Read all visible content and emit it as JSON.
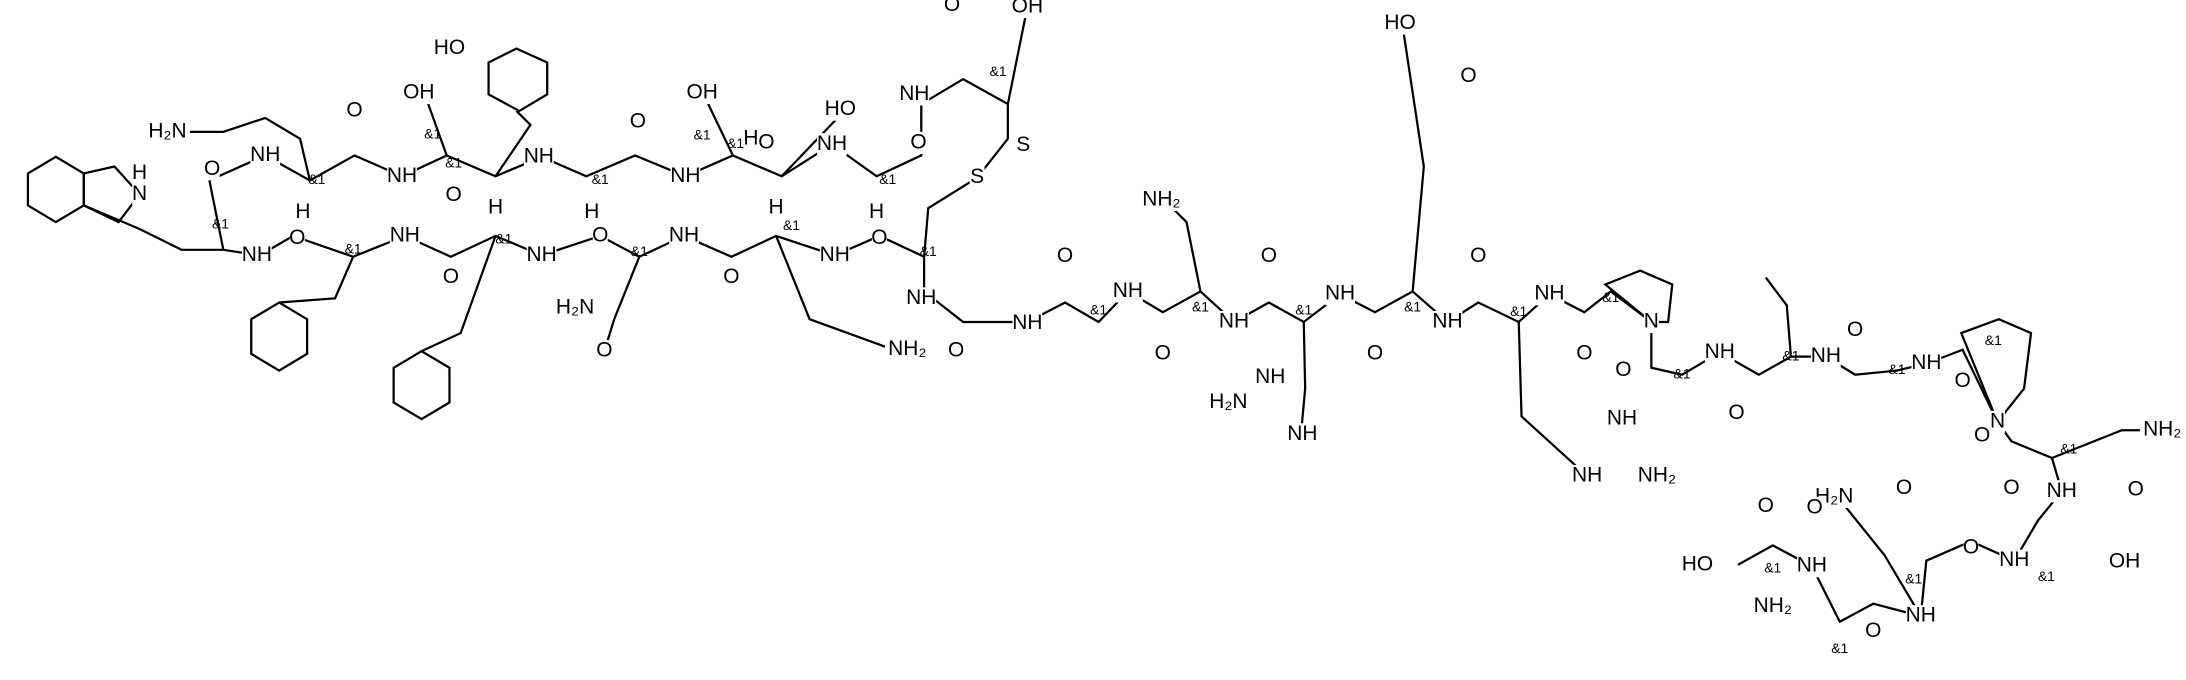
{
  "labels": [
    "H₂N",
    "NH",
    "&1",
    "O",
    "OH",
    "&1",
    "NH",
    "&1",
    "O",
    "HO",
    "NH",
    "&1",
    "O",
    "OH",
    "&1",
    "&1",
    "NH",
    "O",
    "HO",
    "NH",
    "&1",
    "O",
    "NH",
    "&1",
    "O",
    "OH",
    "S",
    "S",
    "H",
    "H",
    "H",
    "H",
    "N",
    "H",
    "&1",
    "O",
    "NH",
    "O",
    "&1",
    "NH",
    "O",
    "&1",
    "H",
    "NH",
    "O",
    "&1",
    "NH",
    "O",
    "&1",
    "H",
    "NH",
    "O",
    "&1",
    "NH",
    "H₂N",
    "O",
    "NH₂",
    "O",
    "NH",
    "O",
    "&1",
    "NH",
    "O",
    "&1",
    "NH₂",
    "NH",
    "O",
    "&1",
    "NH",
    "O",
    "&1",
    "HO",
    "O",
    "NH",
    "O",
    "&1",
    "NH",
    "O",
    "&1",
    "N",
    "O",
    "&1",
    "NH",
    "O",
    "&1",
    "NH",
    "O",
    "&1",
    "NH",
    "O",
    "&1",
    "N",
    "O",
    "&1",
    "NH",
    "O",
    "O",
    "NH₂",
    "NH",
    "H₂N",
    "NH",
    "NH",
    "NH₂",
    "NH",
    "H₂N",
    "O",
    "O",
    "NH",
    "&1",
    "OH",
    "O",
    "&1",
    "NH",
    "O",
    "&1",
    "NH",
    "O",
    "&1",
    "HO",
    "NH₂"
  ]
}
